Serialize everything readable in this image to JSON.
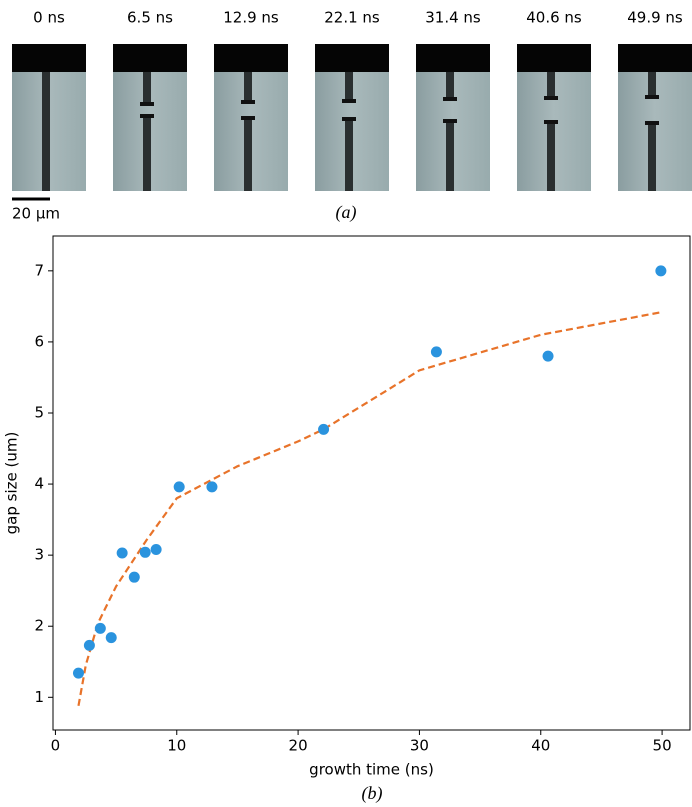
{
  "panel_a": {
    "labels": [
      "0 ns",
      "6.5 ns",
      "12.9 ns",
      "22.1 ns",
      "31.4 ns",
      "40.6 ns",
      "49.9 ns"
    ],
    "scale_bar": "20 µm",
    "caption": "(a)"
  },
  "chart_data": {
    "type": "scatter",
    "caption": "(b)",
    "xlabel": "growth time (ns)",
    "ylabel": "gap size (um)",
    "x": [
      1.9,
      2.8,
      3.7,
      4.6,
      5.5,
      6.5,
      7.4,
      8.3,
      10.2,
      12.9,
      22.1,
      31.4,
      40.6,
      49.9
    ],
    "values": [
      1.34,
      1.73,
      1.97,
      1.84,
      3.03,
      2.69,
      3.04,
      3.08,
      3.96,
      3.96,
      4.77,
      5.86,
      5.8,
      7.0
    ],
    "color": "#2a93de",
    "fit": {
      "x": [
        1.9,
        2.5,
        3.5,
        5,
        7.5,
        10,
        15,
        20,
        22.1,
        30,
        40,
        50
      ],
      "values": [
        0.88,
        1.45,
        2.04,
        2.56,
        3.21,
        3.8,
        4.25,
        4.6,
        4.77,
        5.6,
        6.1,
        6.42
      ],
      "color": "#e8732a",
      "style": "dashed"
    },
    "xlim": [
      -0.2,
      52.3
    ],
    "ylim": [
      0.54,
      7.49
    ],
    "xticks": [
      0,
      10,
      20,
      30,
      40,
      50
    ],
    "yticks": [
      1,
      2,
      3,
      4,
      5,
      6,
      7
    ]
  }
}
